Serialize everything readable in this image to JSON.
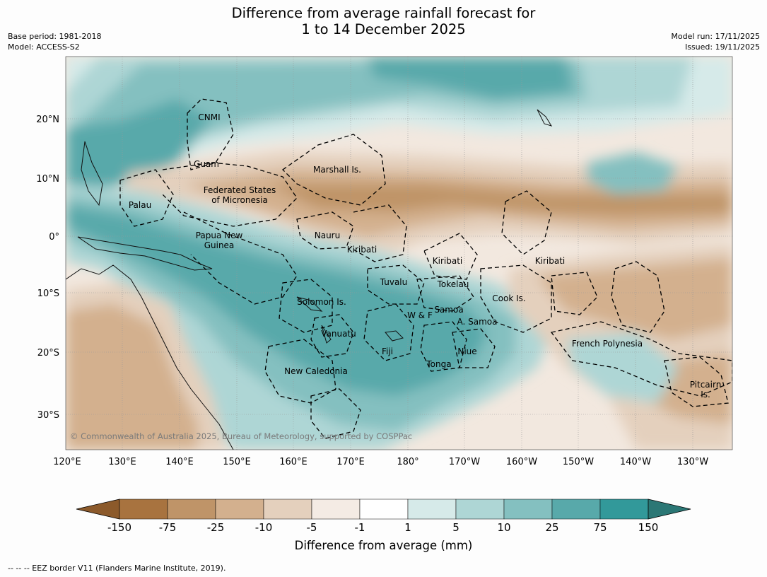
{
  "title_line1": "Difference from average rainfall forecast for",
  "title_line2": "1 to 14 December 2025",
  "base_period": "Base period: 1981-2018",
  "model": "Model: ACCESS-S2",
  "model_run": "Model run: 17/11/2025",
  "issued": "Issued: 19/11/2025",
  "lat_labels": [
    "20°N",
    "10°N",
    "0°",
    "10°S",
    "20°S",
    "30°S"
  ],
  "lon_labels": [
    "120°E",
    "130°E",
    "140°E",
    "150°E",
    "160°E",
    "170°E",
    "180°",
    "170°W",
    "160°W",
    "150°W",
    "140°W",
    "130°W"
  ],
  "regions": {
    "cnmi": "CNMI",
    "guam": "Guam",
    "marshall": "Marshall Is.",
    "fsm_1": "Federated States",
    "fsm_2": "of Micronesia",
    "palau": "Palau",
    "png_1": "Papua New",
    "png_2": "Guinea",
    "nauru": "Nauru",
    "kiribati_w": "Kiribati",
    "kiribati_c": "Kiribati",
    "kiribati_e": "Kiribati",
    "tuvalu": "Tuvalu",
    "tokelau": "Tokelau",
    "cook": "Cook Is.",
    "solomon": "Solomon Is.",
    "wf": "W & F",
    "samoa": "Samoa",
    "asamoa": "A. Samoa",
    "vanuatu": "Vanuatu",
    "fiji": "Fiji",
    "niue": "Niue",
    "tonga": "Tonga",
    "frpoly": "French Polynesia",
    "newcal": "New Caledonia",
    "pitcairn_1": "Pitcairn",
    "pitcairn_2": "Is."
  },
  "copyright": "© Commonwealth of Australia 2025, Bureau of Meteorology, supported by COSPPac",
  "colorbar": {
    "title": "Difference from average (mm)",
    "ticks": [
      "-150",
      "-75",
      "-25",
      "-10",
      "-5",
      "-1",
      "1",
      "5",
      "10",
      "25",
      "75",
      "150"
    ],
    "colors": [
      "#8c5a2b",
      "#a8733f",
      "#bf9468",
      "#d3b08e",
      "#e4d0bd",
      "#f4ebe4",
      "#ffffff",
      "#d6eae9",
      "#aed6d5",
      "#84c0c0",
      "#58a9aa",
      "#32999a",
      "#2b7775"
    ]
  },
  "footnote": "--  --  -- EEZ border V11 (Flanders Marine Institute, 2019)."
}
